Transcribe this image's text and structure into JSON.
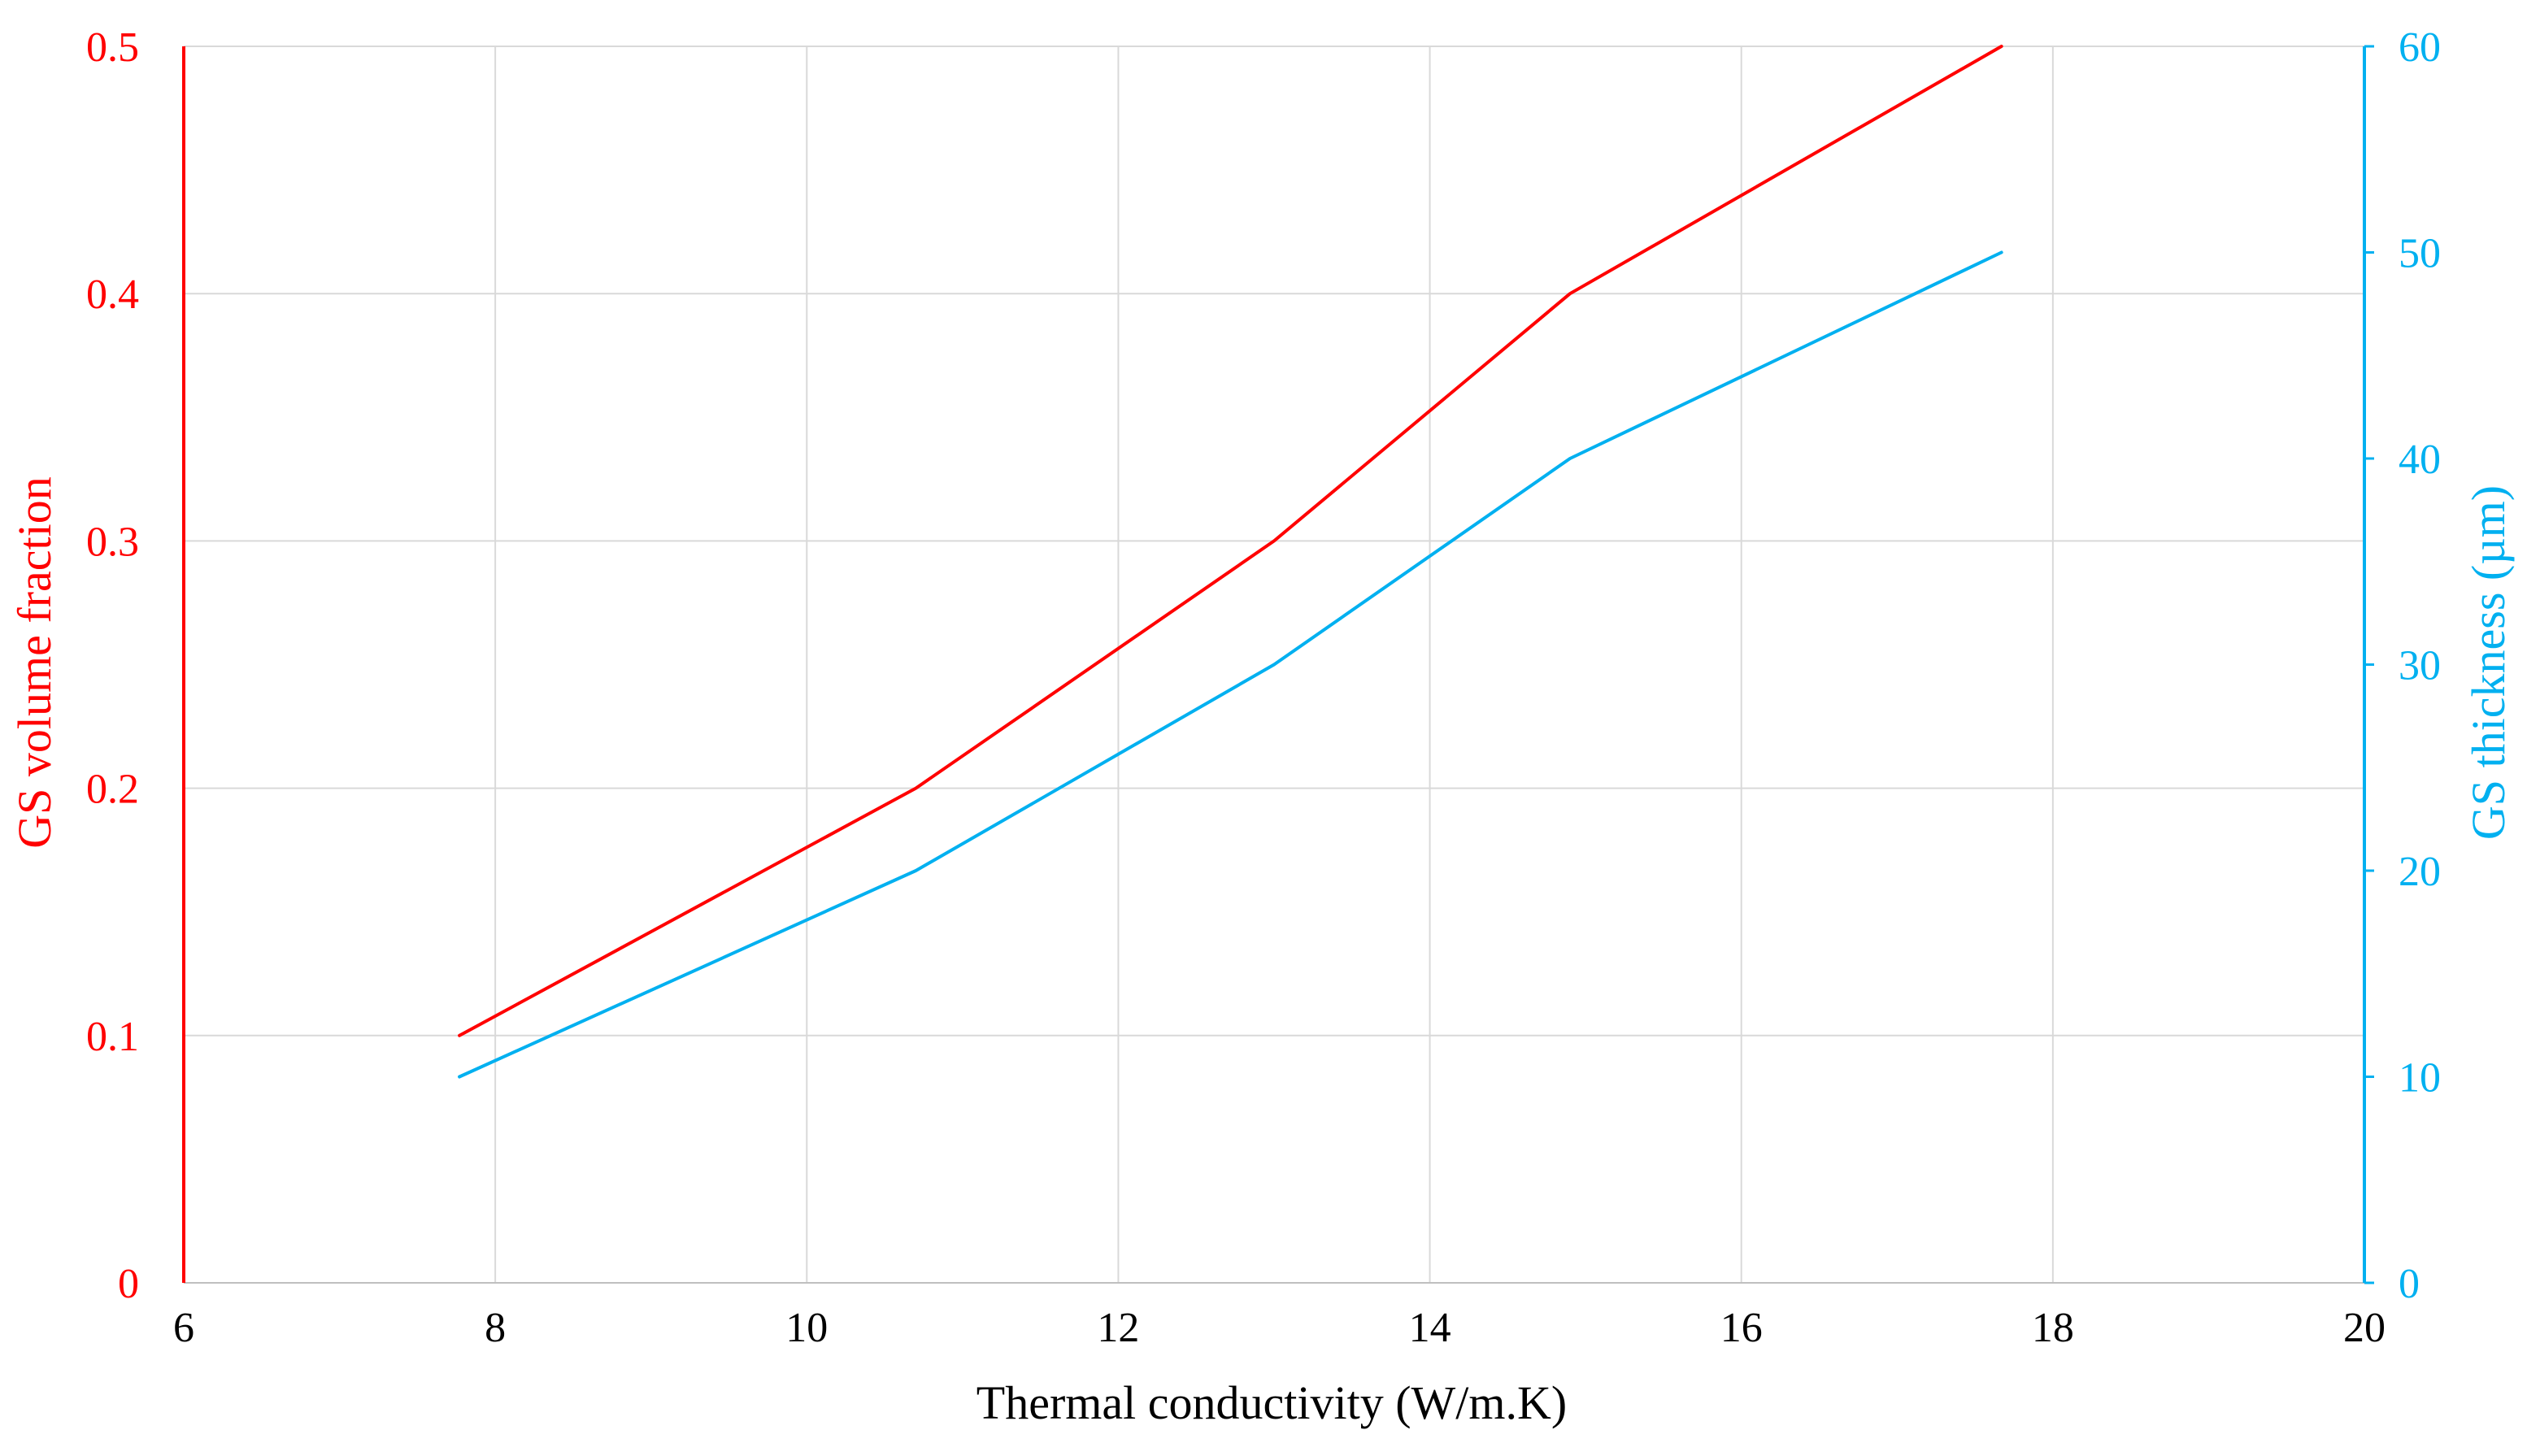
{
  "chart_data": {
    "type": "line",
    "title": "",
    "xlabel": "Thermal conductivity (W/m.K)",
    "ylabel": "GS volume fraction",
    "y2label": "GS thickness (µm)",
    "xlim": [
      6,
      20
    ],
    "ylim": [
      0,
      0.5
    ],
    "y2lim": [
      0,
      60
    ],
    "x_ticks": [
      6,
      8,
      10,
      12,
      14,
      16,
      18,
      20
    ],
    "y_ticks": [
      "0",
      "0.1",
      "0.2",
      "0.3",
      "0.4",
      "0.5"
    ],
    "y2_ticks": [
      "0",
      "10",
      "20",
      "30",
      "40",
      "50",
      "60"
    ],
    "grid": true,
    "colors": {
      "primary": "#ff0000",
      "secondary": "#00b0f0",
      "grid": "#d9d9d9",
      "text": "#000000"
    },
    "series": [
      {
        "axis": "left",
        "color": "#ff0000",
        "x": [
          7.77,
          10.7,
          13.0,
          14.9,
          17.67
        ],
        "y": [
          0.1,
          0.2,
          0.3,
          0.4,
          0.5
        ]
      },
      {
        "axis": "right",
        "color": "#00b0f0",
        "x": [
          7.77,
          10.7,
          13.0,
          14.9,
          17.67
        ],
        "y": [
          10,
          20,
          30,
          40,
          50
        ]
      }
    ]
  }
}
